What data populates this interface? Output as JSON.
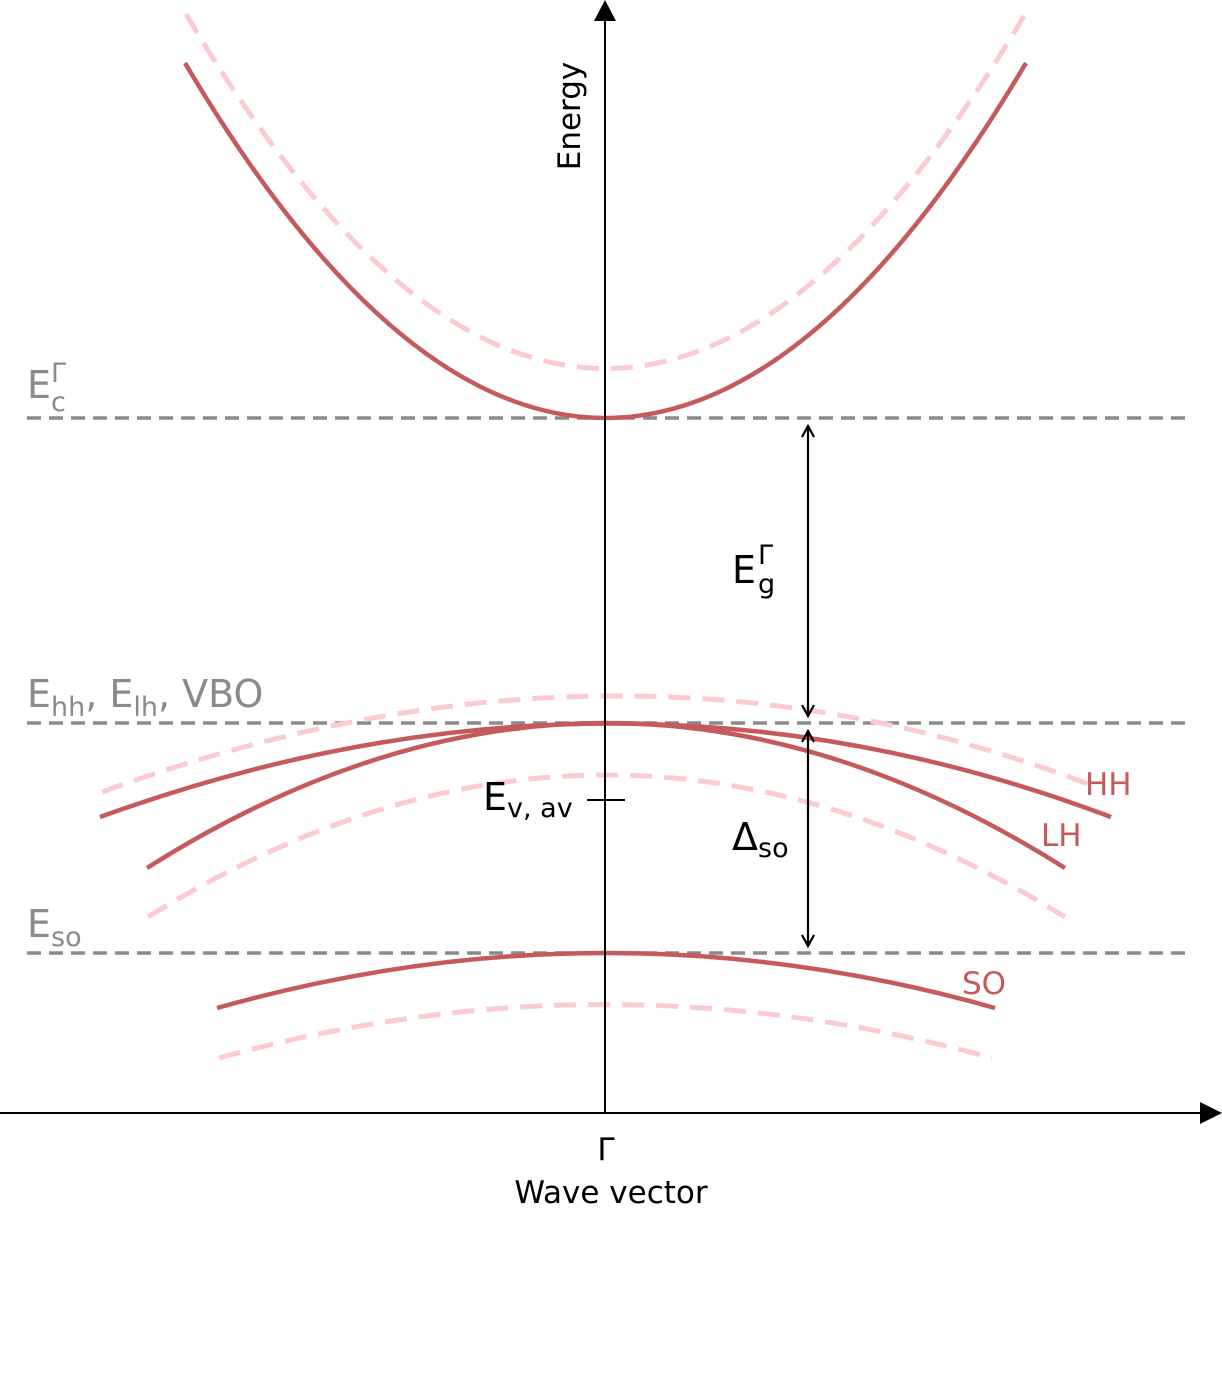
{
  "colors": {
    "band": "#c45a5c",
    "band_strained": "#fccbd2",
    "level": "#8a8a8a",
    "axis": "#000000",
    "background": "#ffffff"
  },
  "axes": {
    "y_label": "Energy",
    "x_label": "Wave vector",
    "x_tick": "Γ"
  },
  "levels": {
    "conduction": {
      "base": "E",
      "sub": "c",
      "sup": "Γ"
    },
    "valence": {
      "e1": "E",
      "s1": "hh",
      "comma1": ",",
      "e2": "E",
      "s2": "lh",
      "tail": ", VBO"
    },
    "split_off": {
      "base": "E",
      "sub": "so"
    }
  },
  "annotations": {
    "gap": {
      "base": "E",
      "sub": "g",
      "sup": "Γ"
    },
    "spin_orbit": {
      "base": "Δ",
      "sub": "so"
    },
    "average_valence": {
      "base": "E",
      "sub": "v, av"
    }
  },
  "bands": {
    "hh_label": "HH",
    "lh_label": "LH",
    "so_label": "SO"
  }
}
